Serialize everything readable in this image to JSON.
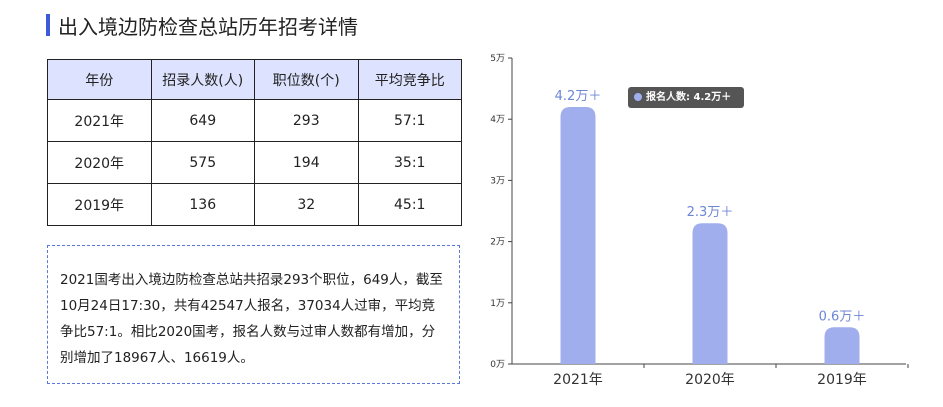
{
  "title": "出入境边防检查总站历年招考详情",
  "table": {
    "headers": [
      "年份",
      "招录人数(人)",
      "职位数(个)",
      "平均竞争比"
    ],
    "rows": [
      [
        "2021年",
        "649",
        "293",
        "57:1"
      ],
      [
        "2020年",
        "575",
        "194",
        "35:1"
      ],
      [
        "2019年",
        "136",
        "32",
        "45:1"
      ]
    ]
  },
  "note": "2021国考出入境边防检查总站共招录293个职位，649人，截至10月24日17:30，共有42547人报名，37034人过审，平均竞争比57:1。相比2020国考，报名人数与过审人数都有增加，分别增加了18967人、16619人。",
  "tooltip": "报名人数: 4.2万＋",
  "colors": {
    "bar": "#a0aeed",
    "label": "#6d86d6",
    "accent": "#3b5bdb",
    "header_bg": "#dde3ff"
  },
  "chart_data": {
    "type": "bar",
    "categories": [
      "2021年",
      "2020年",
      "2019年"
    ],
    "values": [
      4.2,
      2.3,
      0.6
    ],
    "data_labels": [
      "4.2万＋",
      "2.3万＋",
      "0.6万＋"
    ],
    "yticks": [
      "0万",
      "1万",
      "2万",
      "3万",
      "4万",
      "5万"
    ],
    "ylim": [
      0,
      5
    ],
    "grid": false
  }
}
